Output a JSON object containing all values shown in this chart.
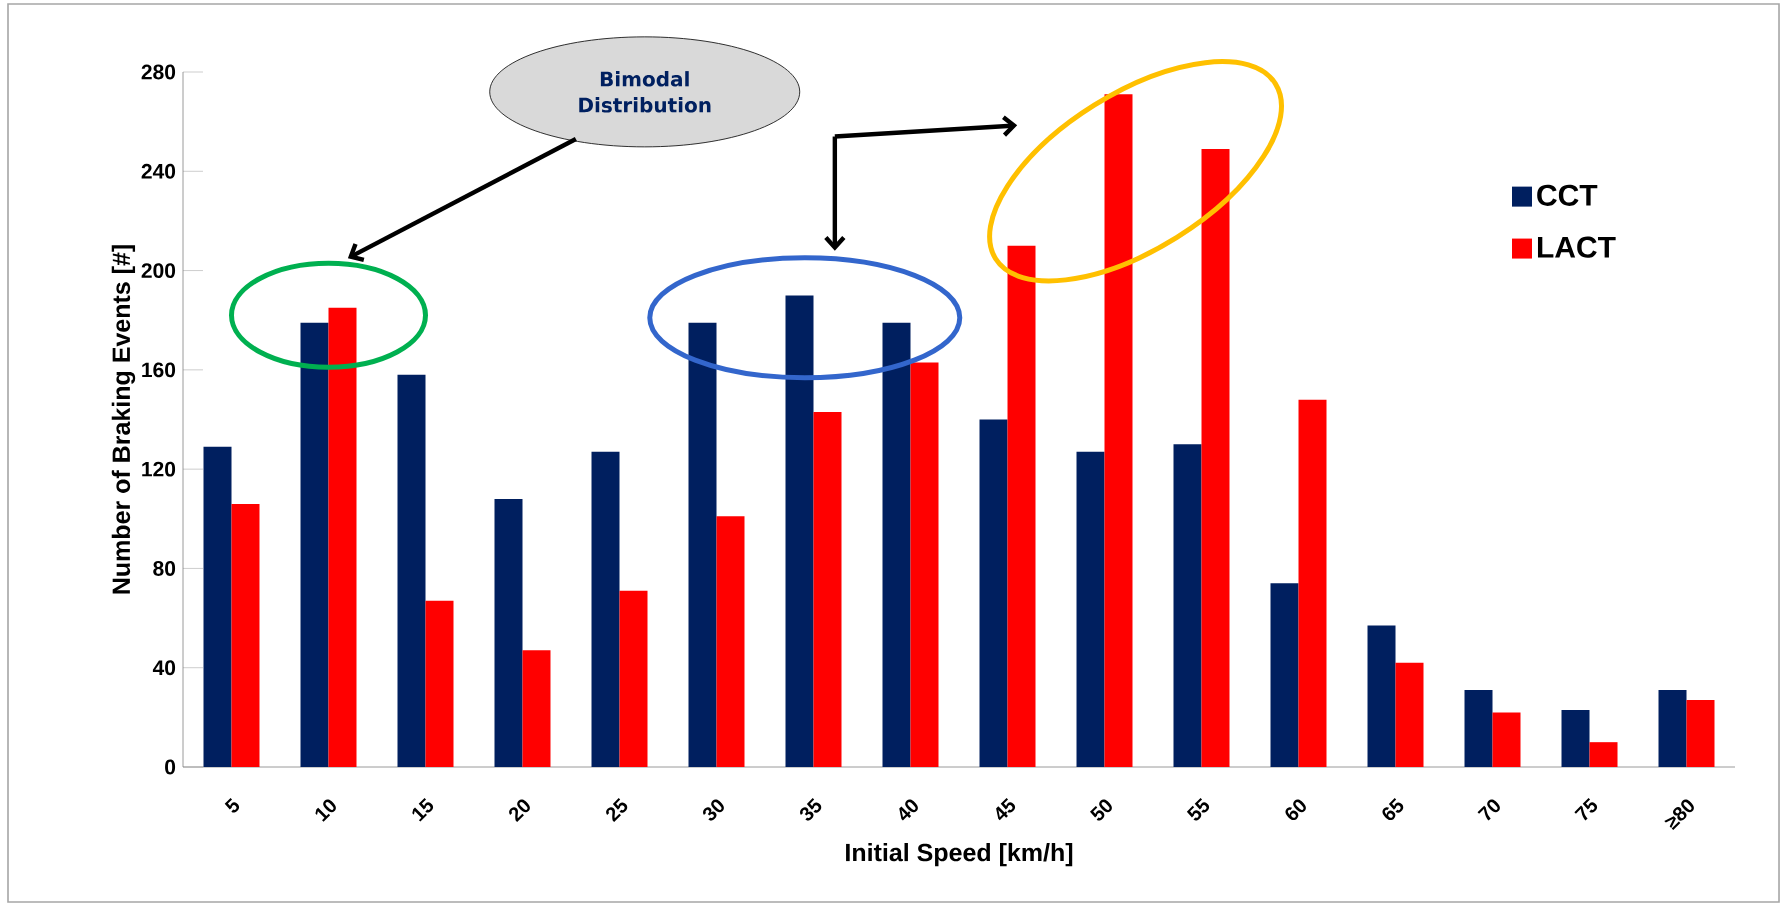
{
  "chart_data": {
    "type": "bar",
    "xlabel": "Initial Speed [km/h]",
    "ylabel": "Number of Braking Events [#]",
    "categories": [
      "5",
      "10",
      "15",
      "20",
      "25",
      "30",
      "35",
      "40",
      "45",
      "50",
      "55",
      "60",
      "65",
      "70",
      "75",
      "≥80"
    ],
    "series": [
      {
        "name": "CCT",
        "color": "#001f5f",
        "values": [
          129,
          179,
          158,
          108,
          127,
          179,
          190,
          179,
          140,
          127,
          130,
          74,
          57,
          31,
          23,
          31
        ]
      },
      {
        "name": "LACT",
        "color": "#ff0000",
        "values": [
          106,
          185,
          67,
          47,
          71,
          101,
          143,
          163,
          210,
          271,
          249,
          148,
          42,
          22,
          10,
          27
        ]
      }
    ],
    "ylim": [
      0,
      280
    ],
    "yticks": [
      0,
      40,
      80,
      120,
      160,
      200,
      240,
      280
    ],
    "legend": "top right",
    "annotations": [
      "Bimodal Distribution"
    ]
  }
}
